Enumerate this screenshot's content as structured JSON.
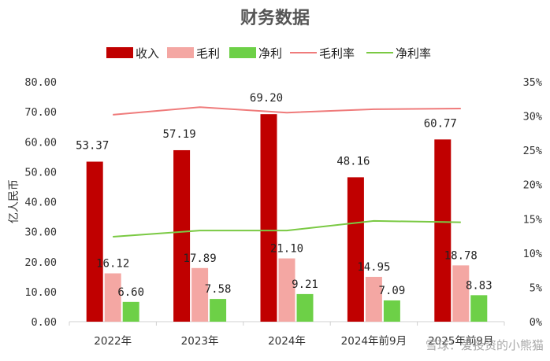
{
  "chart_data": {
    "type": "bar",
    "title": "财务数据",
    "ylabel": "亿人民币",
    "ylim": [
      0,
      80
    ],
    "y2lim": [
      0,
      35
    ],
    "yticks": [
      "0.00",
      "10.00",
      "20.00",
      "30.00",
      "40.00",
      "50.00",
      "60.00",
      "70.00",
      "80.00"
    ],
    "y2ticks": [
      "0%",
      "5%",
      "10%",
      "15%",
      "20%",
      "25%",
      "30%",
      "35%"
    ],
    "categories": [
      "2022年",
      "2023年",
      "2024年",
      "2024年前9月",
      "2025年前9月"
    ],
    "series": [
      {
        "name": "收入",
        "kind": "bar",
        "color": "#c00000",
        "values": [
          53.37,
          57.19,
          69.2,
          48.16,
          60.77
        ],
        "labels": [
          "53.37",
          "57.19",
          "69.20",
          "48.16",
          "60.77"
        ]
      },
      {
        "name": "毛利",
        "kind": "bar",
        "color": "#f4a7a3",
        "values": [
          16.12,
          17.89,
          21.1,
          14.95,
          18.78
        ],
        "labels": [
          "16.12",
          "17.89",
          "21.10",
          "14.95",
          "18.78"
        ]
      },
      {
        "name": "净利",
        "kind": "bar",
        "color": "#6dd047",
        "values": [
          6.6,
          7.58,
          9.21,
          7.09,
          8.83
        ],
        "labels": [
          "6.60",
          "7.58",
          "9.21",
          "7.09",
          "8.83"
        ]
      },
      {
        "name": "毛利率",
        "kind": "line",
        "axis": "right",
        "color": "#ef7b7b",
        "values": [
          30.2,
          31.3,
          30.5,
          31.0,
          31.1
        ]
      },
      {
        "name": "净利率",
        "kind": "line",
        "axis": "right",
        "color": "#7ac943",
        "values": [
          12.4,
          13.3,
          13.3,
          14.7,
          14.5
        ]
      }
    ],
    "grid": false,
    "legend": "top"
  },
  "watermark": "雪球：爱投资的小熊猫"
}
